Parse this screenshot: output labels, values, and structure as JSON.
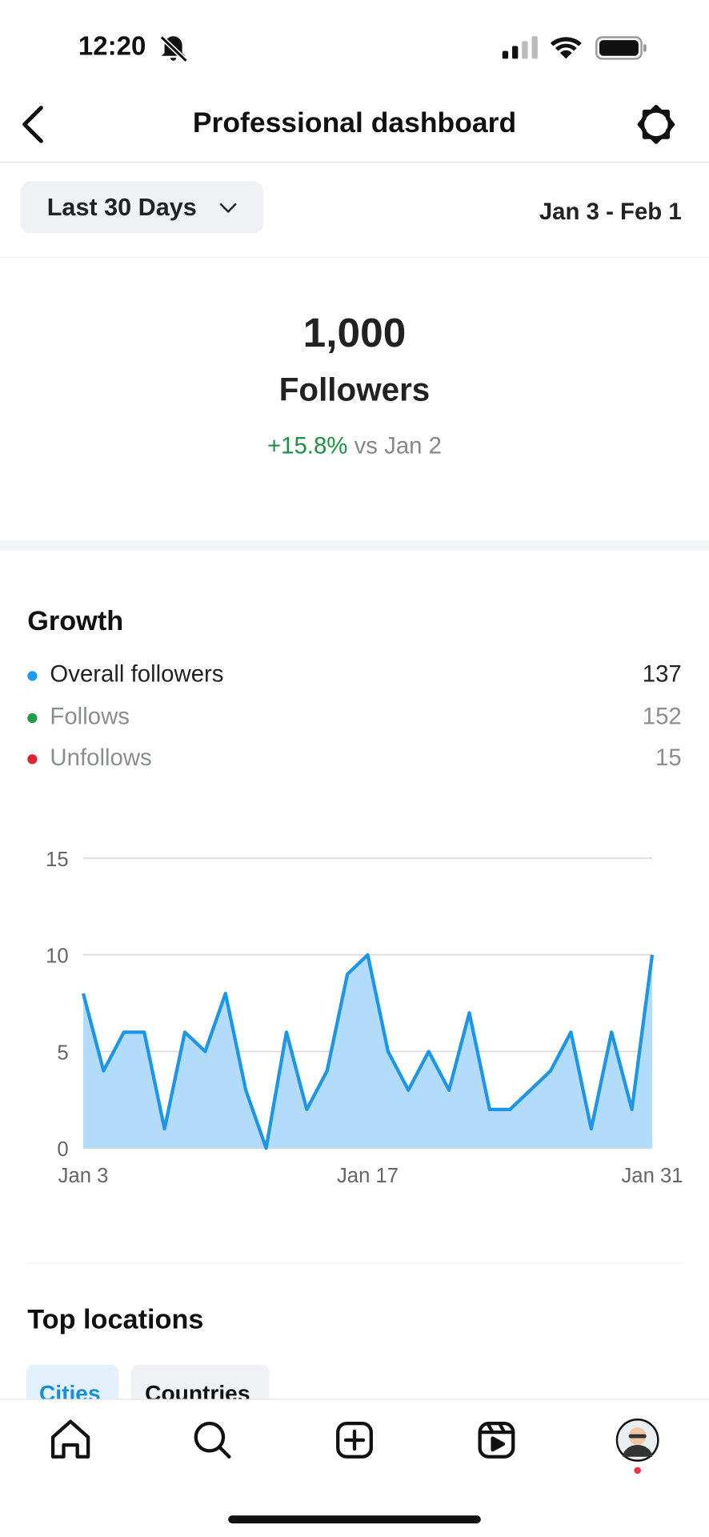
{
  "status_bar": {
    "time": "12:20"
  },
  "header": {
    "title": "Professional dashboard"
  },
  "filter": {
    "range": "Last 30 Days",
    "dates": "Jan 3 - Feb 1"
  },
  "summary": {
    "count": "1,000",
    "label": "Followers",
    "change": "+15.8%",
    "comparison": "vs Jan 2"
  },
  "growth": {
    "title": "Growth",
    "legend": [
      {
        "label": "Overall followers",
        "value": 137,
        "color": "#1d9bf0"
      },
      {
        "label": "Follows",
        "value": 152,
        "color": "#1f9d47"
      },
      {
        "label": "Unfollows",
        "value": 15,
        "color": "#e0242f"
      }
    ]
  },
  "chart_data": {
    "type": "area",
    "categories": [
      "Jan 3",
      null,
      null,
      null,
      null,
      null,
      null,
      null,
      null,
      null,
      null,
      null,
      null,
      null,
      "Jan 17",
      null,
      null,
      null,
      null,
      null,
      null,
      null,
      null,
      null,
      null,
      null,
      null,
      null,
      "Jan 31"
    ],
    "values": [
      8,
      4,
      6,
      6,
      1,
      6,
      5,
      8,
      3,
      0,
      6,
      2,
      4,
      9,
      10,
      5,
      3,
      5,
      3,
      7,
      2,
      2,
      3,
      4,
      6,
      1,
      6,
      2,
      10
    ],
    "color": "#1e96e6",
    "fill": "#b3dcfb",
    "ylim": [
      0,
      15
    ],
    "yticks": [
      0,
      5,
      10,
      15
    ],
    "grid": true
  },
  "locations": {
    "title": "Top locations",
    "tabs": [
      "Cities",
      "Countries"
    ]
  }
}
